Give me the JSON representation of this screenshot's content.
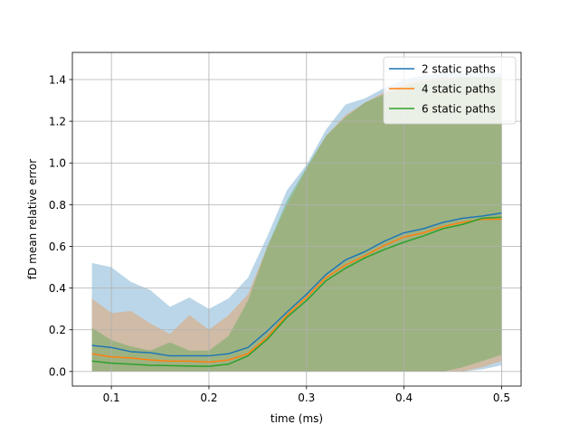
{
  "chart_data": {
    "type": "line",
    "title": "",
    "xlabel": "time (ms)",
    "ylabel": "fD mean relative error",
    "xlim": [
      0.06,
      0.52
    ],
    "ylim": [
      -0.07,
      1.53
    ],
    "xticks": [
      0.1,
      0.2,
      0.3,
      0.4,
      0.5
    ],
    "xtick_labels": [
      "0.1",
      "0.2",
      "0.3",
      "0.4",
      "0.5"
    ],
    "yticks": [
      0.0,
      0.2,
      0.4,
      0.6,
      0.8,
      1.0,
      1.2,
      1.4
    ],
    "ytick_labels": [
      "0.0",
      "0.2",
      "0.4",
      "0.6",
      "0.8",
      "1.0",
      "1.2",
      "1.4"
    ],
    "grid": true,
    "legend_position": "top-right",
    "x": [
      0.08,
      0.1,
      0.12,
      0.14,
      0.16,
      0.18,
      0.2,
      0.22,
      0.24,
      0.26,
      0.28,
      0.3,
      0.32,
      0.34,
      0.36,
      0.38,
      0.4,
      0.42,
      0.44,
      0.46,
      0.48,
      0.5
    ],
    "series": [
      {
        "name": "2 static paths",
        "color": "#1f77b4",
        "band_color": "#1f77b4",
        "values": [
          0.125,
          0.115,
          0.095,
          0.09,
          0.075,
          0.075,
          0.075,
          0.085,
          0.115,
          0.195,
          0.285,
          0.37,
          0.465,
          0.535,
          0.575,
          0.625,
          0.665,
          0.685,
          0.715,
          0.735,
          0.745,
          0.76
        ],
        "upper": [
          0.52,
          0.5,
          0.43,
          0.39,
          0.31,
          0.355,
          0.3,
          0.35,
          0.45,
          0.65,
          0.87,
          0.99,
          1.16,
          1.28,
          1.31,
          1.36,
          1.4,
          1.42,
          1.43,
          1.43,
          1.43,
          1.43
        ],
        "lower": [
          0.0,
          0.0,
          0.0,
          0.0,
          0.0,
          0.0,
          0.0,
          0.0,
          0.0,
          0.0,
          0.0,
          0.0,
          0.0,
          0.0,
          0.0,
          0.0,
          0.0,
          0.0,
          0.0,
          0.0,
          0.01,
          0.03
        ]
      },
      {
        "name": "4 static paths",
        "color": "#ff7f0e",
        "band_color": "#ff7f0e",
        "values": [
          0.085,
          0.07,
          0.065,
          0.055,
          0.05,
          0.05,
          0.045,
          0.055,
          0.085,
          0.165,
          0.27,
          0.355,
          0.45,
          0.51,
          0.555,
          0.605,
          0.645,
          0.665,
          0.695,
          0.715,
          0.73,
          0.73
        ],
        "upper": [
          0.35,
          0.28,
          0.29,
          0.23,
          0.18,
          0.27,
          0.2,
          0.27,
          0.37,
          0.6,
          0.8,
          0.97,
          1.13,
          1.23,
          1.29,
          1.34,
          1.38,
          1.4,
          1.41,
          1.41,
          1.41,
          1.41
        ],
        "lower": [
          0.0,
          0.0,
          0.0,
          0.0,
          0.0,
          0.0,
          0.0,
          0.0,
          0.0,
          0.0,
          0.0,
          0.0,
          0.0,
          0.0,
          0.0,
          0.0,
          0.0,
          0.0,
          0.0,
          0.0,
          0.02,
          0.05
        ]
      },
      {
        "name": "6 static paths",
        "color": "#2ca02c",
        "band_color": "#2ca02c",
        "values": [
          0.05,
          0.04,
          0.035,
          0.03,
          0.028,
          0.026,
          0.025,
          0.035,
          0.075,
          0.155,
          0.26,
          0.34,
          0.435,
          0.495,
          0.545,
          0.585,
          0.62,
          0.65,
          0.685,
          0.705,
          0.735,
          0.74
        ],
        "upper": [
          0.21,
          0.15,
          0.12,
          0.1,
          0.14,
          0.1,
          0.1,
          0.17,
          0.34,
          0.6,
          0.82,
          0.98,
          1.13,
          1.22,
          1.29,
          1.33,
          1.37,
          1.39,
          1.4,
          1.41,
          1.41,
          1.41
        ],
        "lower": [
          0.0,
          0.0,
          0.0,
          0.0,
          0.0,
          0.0,
          0.0,
          0.0,
          0.0,
          0.0,
          0.0,
          0.0,
          0.0,
          0.0,
          0.0,
          0.0,
          0.0,
          0.0,
          0.0,
          0.02,
          0.05,
          0.08
        ]
      }
    ]
  }
}
